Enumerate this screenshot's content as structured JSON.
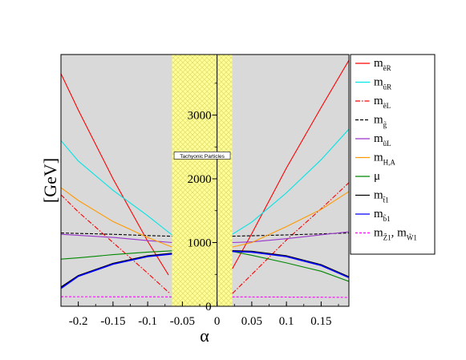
{
  "chart_data": {
    "type": "line",
    "xlabel": "α",
    "ylabel": "[GeV]",
    "xlim": [
      -0.225,
      0.19
    ],
    "ylim": [
      0,
      3950
    ],
    "x_ticks": [
      -0.2,
      -0.15,
      -0.1,
      -0.05,
      0,
      0.05,
      0.1,
      0.15
    ],
    "x_tick_labels": [
      "-0.2",
      "-0.15",
      "-0.1",
      "-0.05",
      "0",
      "0.05",
      "0.1",
      "0.15"
    ],
    "y_ticks": [
      0,
      1000,
      2000,
      3000
    ],
    "y_tick_labels": [
      "0",
      "1000",
      "2000",
      "3000"
    ],
    "grid": false,
    "legend_position": "right",
    "background_color": "#d9d9d9",
    "excluded_region": {
      "x_range": [
        -0.065,
        0.022
      ],
      "color": "#ffff99",
      "label": "Tachyonic Particles",
      "label_y": 2360
    },
    "series": [
      {
        "name": "m_ẽR",
        "legend_main": "m",
        "legend_sub": "ẽR",
        "color": "#ff0000",
        "dash": "",
        "left": [
          [
            -0.225,
            3650
          ],
          [
            -0.2,
            3080
          ],
          [
            -0.15,
            2000
          ],
          [
            -0.1,
            1020
          ],
          [
            -0.07,
            490
          ]
        ],
        "right": [
          [
            0.022,
            590
          ],
          [
            0.05,
            1140
          ],
          [
            0.1,
            2170
          ],
          [
            0.15,
            3120
          ],
          [
            0.19,
            3860
          ]
        ]
      },
      {
        "name": "m_ũR",
        "legend_main": "m",
        "legend_sub": "ũR",
        "color": "#00e5e5",
        "dash": "",
        "left": [
          [
            -0.225,
            2600
          ],
          [
            -0.2,
            2280
          ],
          [
            -0.15,
            1820
          ],
          [
            -0.1,
            1420
          ],
          [
            -0.065,
            1120
          ]
        ],
        "right": [
          [
            0.022,
            1130
          ],
          [
            0.05,
            1320
          ],
          [
            0.1,
            1780
          ],
          [
            0.15,
            2300
          ],
          [
            0.19,
            2780
          ]
        ]
      },
      {
        "name": "m_ẽL",
        "legend_main": "m",
        "legend_sub": "ẽL",
        "color": "#ff0000",
        "dash": "6,2,1.5,2",
        "left": [
          [
            -0.225,
            1750
          ],
          [
            -0.2,
            1480
          ],
          [
            -0.15,
            1000
          ],
          [
            -0.1,
            520
          ],
          [
            -0.068,
            200
          ]
        ],
        "right": [
          [
            0.022,
            200
          ],
          [
            0.05,
            500
          ],
          [
            0.1,
            1040
          ],
          [
            0.15,
            1530
          ],
          [
            0.19,
            1940
          ]
        ]
      },
      {
        "name": "m_g̃",
        "legend_main": "m",
        "legend_sub": "g̃",
        "color": "#000000",
        "dash": "4,2",
        "left": [
          [
            -0.225,
            1150
          ],
          [
            -0.15,
            1130
          ],
          [
            -0.1,
            1110
          ],
          [
            -0.065,
            1100
          ]
        ],
        "right": [
          [
            0.022,
            1100
          ],
          [
            0.1,
            1120
          ],
          [
            0.19,
            1150
          ]
        ]
      },
      {
        "name": "m_ũL",
        "legend_main": "m",
        "legend_sub": "ũL",
        "color": "#9933cc",
        "dash": "",
        "left": [
          [
            -0.225,
            1130
          ],
          [
            -0.15,
            1080
          ],
          [
            -0.1,
            1030
          ],
          [
            -0.065,
            1000
          ]
        ],
        "right": [
          [
            0.022,
            1000
          ],
          [
            0.05,
            1010
          ],
          [
            0.1,
            1060
          ],
          [
            0.19,
            1170
          ]
        ]
      },
      {
        "name": "m_H,A",
        "legend_main": "m",
        "legend_sub": "H,A",
        "color": "#ff9900",
        "dash": "",
        "left": [
          [
            -0.225,
            1860
          ],
          [
            -0.2,
            1660
          ],
          [
            -0.15,
            1330
          ],
          [
            -0.1,
            1080
          ],
          [
            -0.065,
            930
          ]
        ],
        "right": [
          [
            0.022,
            930
          ],
          [
            0.05,
            1000
          ],
          [
            0.1,
            1250
          ],
          [
            0.15,
            1520
          ],
          [
            0.19,
            1800
          ]
        ]
      },
      {
        "name": "μ",
        "legend_main": "μ",
        "legend_sub": "",
        "color": "#008800",
        "dash": "",
        "left": [
          [
            -0.225,
            740
          ],
          [
            -0.2,
            760
          ],
          [
            -0.15,
            810
          ],
          [
            -0.1,
            850
          ],
          [
            -0.065,
            870
          ]
        ],
        "right": [
          [
            0.022,
            860
          ],
          [
            0.05,
            800
          ],
          [
            0.1,
            680
          ],
          [
            0.15,
            550
          ],
          [
            0.19,
            390
          ]
        ]
      },
      {
        "name": "m_t̃1",
        "legend_main": "m",
        "legend_sub": "t̃1",
        "color": "#000000",
        "dash": "",
        "left": [
          [
            -0.225,
            300
          ],
          [
            -0.2,
            480
          ],
          [
            -0.15,
            670
          ],
          [
            -0.1,
            790
          ],
          [
            -0.065,
            830
          ]
        ],
        "right": [
          [
            0.022,
            870
          ],
          [
            0.05,
            860
          ],
          [
            0.1,
            790
          ],
          [
            0.15,
            650
          ],
          [
            0.19,
            460
          ]
        ]
      },
      {
        "name": "m_b̃1",
        "legend_main": "m",
        "legend_sub": "b̃1",
        "color": "#0000ff",
        "dash": "",
        "left": [
          [
            -0.225,
            280
          ],
          [
            -0.2,
            470
          ],
          [
            -0.15,
            660
          ],
          [
            -0.1,
            780
          ],
          [
            -0.065,
            820
          ]
        ],
        "right": [
          [
            0.022,
            860
          ],
          [
            0.05,
            850
          ],
          [
            0.1,
            780
          ],
          [
            0.15,
            640
          ],
          [
            0.19,
            450
          ]
        ]
      },
      {
        "name": "m_Z̃1, m_W̃1",
        "legend_main": "m",
        "legend_sub": "Z̃1",
        "legend_extra_main": ", m",
        "legend_extra_sub": "W̃1",
        "color": "#ff00ff",
        "dash": "3,2",
        "left": [
          [
            -0.225,
            150
          ],
          [
            -0.1,
            148
          ],
          [
            -0.065,
            147
          ]
        ],
        "right": [
          [
            0.022,
            147
          ],
          [
            0.1,
            145
          ],
          [
            0.19,
            140
          ]
        ]
      }
    ]
  }
}
